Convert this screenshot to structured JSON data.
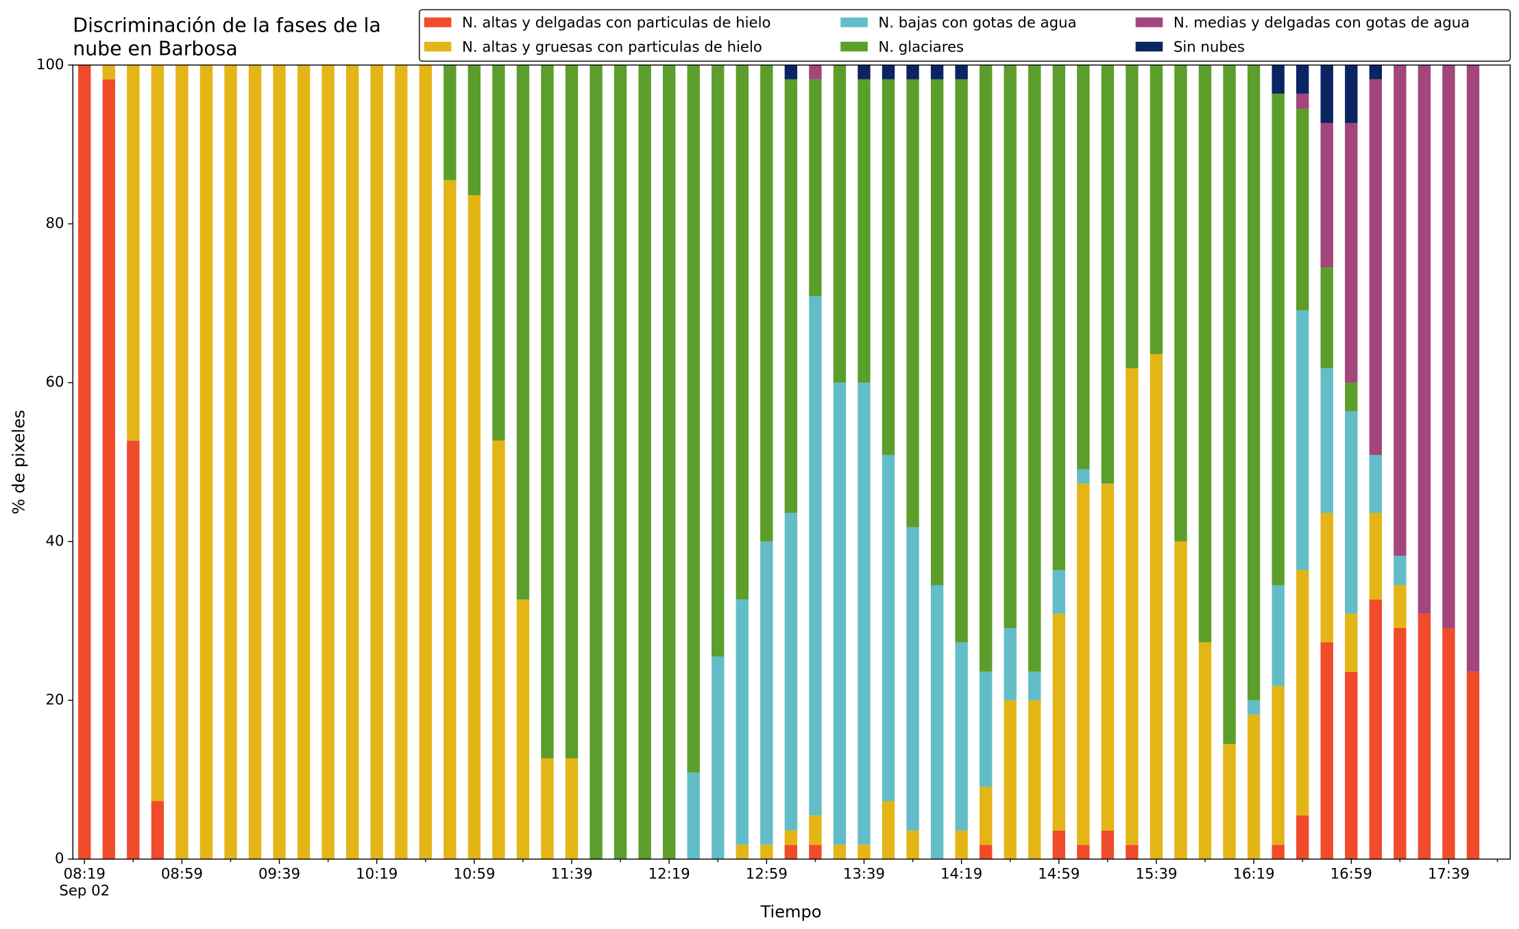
{
  "chart_data": {
    "type": "stacked_bar",
    "title": "Discriminación de la fases de la\nnube en Barbosa",
    "x_label": "Tiempo",
    "y_label": "% de pixeles",
    "x_date_label": "Sep 02",
    "categories": [
      "08:19",
      null,
      null,
      null,
      "08:59",
      null,
      null,
      null,
      "09:39",
      null,
      null,
      null,
      "10:19",
      null,
      null,
      null,
      "10:59",
      null,
      null,
      null,
      "11:39",
      null,
      null,
      null,
      "12:19",
      null,
      null,
      null,
      "12:59",
      null,
      null,
      null,
      "13:39",
      null,
      null,
      null,
      "14:19",
      null,
      null,
      null,
      "14:59",
      null,
      null,
      null,
      "15:39",
      null,
      null,
      null,
      "16:19",
      null,
      null,
      null,
      "16:59",
      null,
      null,
      null,
      "17:39",
      null
    ],
    "ylim": [
      0,
      100
    ],
    "yticks": [
      0,
      20,
      40,
      60,
      80,
      100
    ],
    "legend": "upper right",
    "series": [
      {
        "name": "N. altas y delgadas con particulas de hielo",
        "color": "#f04b2b",
        "values": [
          100,
          98.2,
          52.7,
          7.3,
          0,
          0,
          0,
          0,
          0,
          0,
          0,
          0,
          0,
          0,
          0,
          0,
          0,
          0,
          0,
          0,
          0,
          0,
          0,
          0,
          0,
          0,
          0,
          0,
          0,
          1.8,
          1.8,
          0,
          0,
          0,
          0,
          0,
          0,
          1.8,
          0,
          0,
          3.6,
          1.8,
          3.6,
          1.8,
          0,
          0,
          0,
          0,
          0,
          1.8,
          5.5,
          27.3,
          23.6,
          32.7,
          29.1,
          30.9,
          29.1,
          23.6
        ]
      },
      {
        "name": "N. altas y gruesas con particulas de hielo",
        "color": "#e4b516",
        "values": [
          0,
          1.8,
          47.3,
          92.7,
          100,
          100,
          100,
          100,
          100,
          100,
          100,
          100,
          100,
          100,
          100,
          85.5,
          83.6,
          52.7,
          32.7,
          12.7,
          12.7,
          0,
          0,
          0,
          0,
          0,
          0,
          1.8,
          1.8,
          1.8,
          3.7,
          1.8,
          1.8,
          7.3,
          3.6,
          0,
          3.6,
          7.3,
          20,
          20,
          27.3,
          45.5,
          43.7,
          60,
          63.6,
          40,
          27.3,
          14.5,
          18.2,
          20,
          30.9,
          16.3,
          7.3,
          10.9,
          5.4,
          0,
          0,
          0
        ]
      },
      {
        "name": "N. bajas con gotas de agua",
        "color": "#63bdc8",
        "values": [
          0,
          0,
          0,
          0,
          0,
          0,
          0,
          0,
          0,
          0,
          0,
          0,
          0,
          0,
          0,
          0,
          0,
          0,
          0,
          0,
          0,
          0,
          0,
          0,
          0,
          10.9,
          25.5,
          30.9,
          38.2,
          40,
          65.4,
          58.2,
          58.2,
          43.6,
          38.2,
          34.5,
          23.7,
          14.5,
          9.1,
          3.6,
          5.5,
          1.8,
          0,
          0,
          0,
          0,
          0,
          0,
          1.8,
          12.7,
          32.7,
          18.2,
          25.5,
          7.3,
          3.7,
          0,
          0,
          0
        ]
      },
      {
        "name": "N. glaciares",
        "color": "#5c9e2b",
        "values": [
          0,
          0,
          0,
          0,
          0,
          0,
          0,
          0,
          0,
          0,
          0,
          0,
          0,
          0,
          0,
          14.5,
          16.4,
          47.3,
          67.3,
          87.3,
          87.3,
          100,
          100,
          100,
          100,
          89.1,
          74.5,
          67.3,
          60,
          54.6,
          27.3,
          40,
          38.2,
          47.3,
          56.4,
          63.7,
          70.9,
          76.4,
          70.9,
          76.4,
          63.6,
          50.9,
          52.7,
          38.2,
          36.4,
          60,
          72.7,
          85.5,
          80,
          61.9,
          25.4,
          12.7,
          3.6,
          0,
          0,
          0,
          0,
          0
        ]
      },
      {
        "name": "N. medias y delgadas con gotas de agua",
        "color": "#a2467c",
        "values": [
          0,
          0,
          0,
          0,
          0,
          0,
          0,
          0,
          0,
          0,
          0,
          0,
          0,
          0,
          0,
          0,
          0,
          0,
          0,
          0,
          0,
          0,
          0,
          0,
          0,
          0,
          0,
          0,
          0,
          0,
          1.8,
          0,
          0,
          0,
          0,
          0,
          0,
          0,
          0,
          0,
          0,
          0,
          0,
          0,
          0,
          0,
          0,
          0,
          0,
          0,
          1.9,
          18.2,
          32.7,
          47.3,
          61.8,
          69.1,
          70.9,
          76.4
        ]
      },
      {
        "name": "Sin nubes",
        "color": "#0b2462",
        "values": [
          0,
          0,
          0,
          0,
          0,
          0,
          0,
          0,
          0,
          0,
          0,
          0,
          0,
          0,
          0,
          0,
          0,
          0,
          0,
          0,
          0,
          0,
          0,
          0,
          0,
          0,
          0,
          0,
          0,
          1.8,
          0,
          0,
          1.8,
          1.8,
          1.8,
          1.8,
          1.8,
          0,
          0,
          0,
          0,
          0,
          0,
          0,
          0,
          0,
          0,
          0,
          0,
          3.6,
          3.6,
          7.3,
          7.3,
          1.8,
          0,
          0,
          0,
          0
        ]
      }
    ]
  }
}
